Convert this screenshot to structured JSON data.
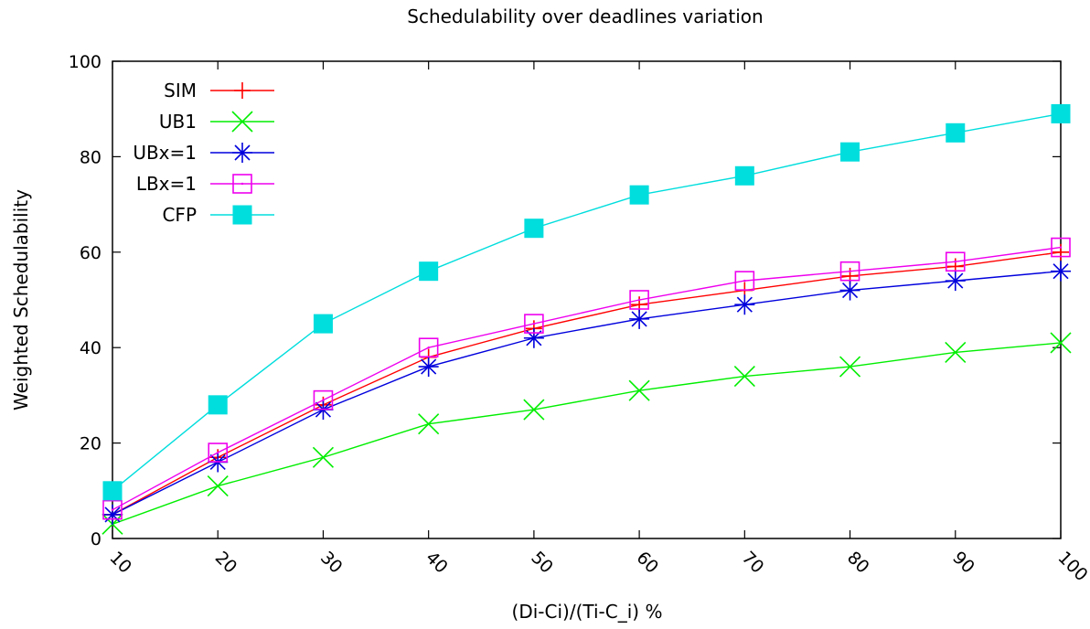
{
  "chart_data": {
    "type": "line",
    "title": "Schedulability over deadlines variation",
    "xlabel": "(Di-Ci)/(Ti-C_i) %",
    "ylabel": "Weighted Schedulability",
    "x": [
      10,
      20,
      30,
      40,
      50,
      60,
      70,
      80,
      90,
      100
    ],
    "xlim": [
      10,
      100
    ],
    "ylim": [
      0,
      100
    ],
    "x_ticks": [
      "10",
      "20",
      "30",
      "40",
      "50",
      "60",
      "70",
      "80",
      "90",
      "100"
    ],
    "y_ticks": [
      "0",
      "20",
      "40",
      "60",
      "80",
      "100"
    ],
    "grid": false,
    "legend_position": "top-left",
    "series": [
      {
        "name": "SIM",
        "color": "#ff0000",
        "marker": "plus",
        "values": [
          5,
          17,
          28,
          38,
          44,
          49,
          52,
          55,
          57,
          60
        ]
      },
      {
        "name": "UB1",
        "color": "#00ee00",
        "marker": "cross",
        "values": [
          3,
          11,
          17,
          24,
          27,
          31,
          34,
          36,
          39,
          41
        ]
      },
      {
        "name": "UBx=1",
        "color": "#0000dd",
        "marker": "star",
        "values": [
          5,
          16,
          27,
          36,
          42,
          46,
          49,
          52,
          54,
          56
        ]
      },
      {
        "name": "LBx=1",
        "color": "#ee00ee",
        "marker": "box-open",
        "values": [
          6,
          18,
          29,
          40,
          45,
          50,
          54,
          56,
          58,
          61
        ]
      },
      {
        "name": "CFP",
        "color": "#00dddd",
        "marker": "box-filled",
        "values": [
          10,
          28,
          45,
          56,
          65,
          72,
          76,
          81,
          85,
          89
        ]
      }
    ]
  }
}
